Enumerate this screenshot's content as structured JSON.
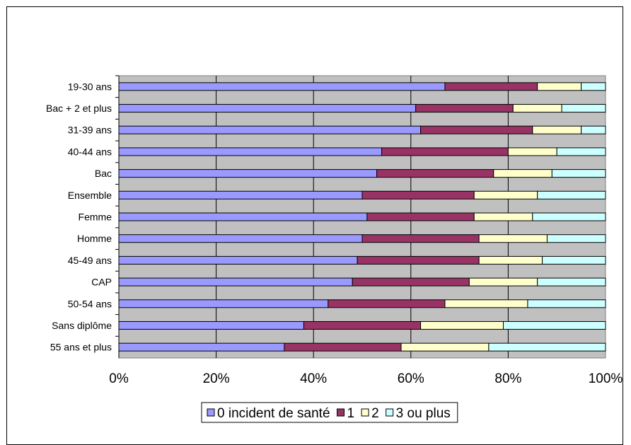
{
  "chart_data": {
    "type": "bar",
    "orientation": "horizontal",
    "stacking": "percent",
    "categories": [
      "19-30 ans",
      "Bac + 2 et plus",
      "31-39 ans",
      "40-44 ans",
      "Bac",
      "Ensemble",
      "Femme",
      "Homme",
      "45-49 ans",
      "CAP",
      "50-54 ans",
      "Sans diplôme",
      "55 ans et plus"
    ],
    "series": [
      {
        "name": "0 incident de santé",
        "color": "#9999ff",
        "values": [
          67,
          61,
          62,
          54,
          53,
          50,
          51,
          50,
          49,
          48,
          43,
          38,
          34
        ]
      },
      {
        "name": "1",
        "color": "#993366",
        "values": [
          19,
          20,
          23,
          26,
          24,
          23,
          22,
          24,
          25,
          24,
          24,
          24,
          24
        ]
      },
      {
        "name": "2",
        "color": "#ffffcc",
        "values": [
          9,
          10,
          10,
          10,
          12,
          13,
          12,
          14,
          13,
          14,
          17,
          17,
          18
        ]
      },
      {
        "name": "3 ou plus",
        "color": "#ccffff",
        "values": [
          5,
          9,
          5,
          10,
          11,
          14,
          15,
          12,
          13,
          14,
          16,
          21,
          24
        ]
      }
    ],
    "x_ticks": [
      "0%",
      "20%",
      "40%",
      "60%",
      "80%",
      "100%"
    ],
    "xlim": [
      0,
      100
    ],
    "grid": true,
    "plot_background": "#c0c0c0",
    "legend_position": "bottom"
  }
}
